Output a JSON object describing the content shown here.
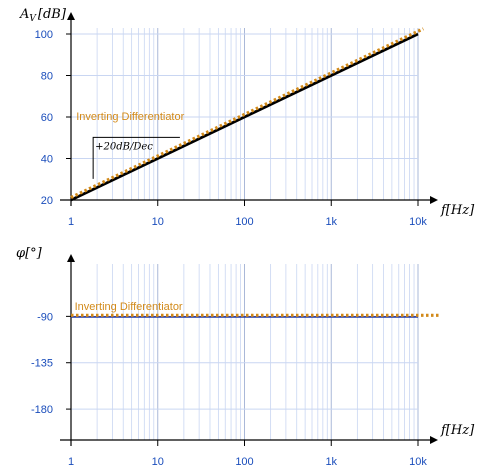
{
  "chart_data": [
    {
      "type": "line",
      "panel": "magnitude",
      "xscale": "log",
      "xlim": [
        1,
        10000
      ],
      "ylim": [
        20,
        100
      ],
      "xticks": [
        1,
        10,
        100,
        1000,
        10000
      ],
      "xtick_labels": [
        "1",
        "10",
        "100",
        "1k",
        "10k"
      ],
      "yticks": [
        20,
        40,
        60,
        80,
        100
      ],
      "ytick_labels": [
        "20",
        "40",
        "60",
        "80",
        "100"
      ],
      "ylabel": "A_V [dB]",
      "ylabel_main": "A",
      "ylabel_sub": "V",
      "ylabel_unit": "[dB]",
      "xlabel": "f[Hz]",
      "grid": true,
      "colors": {
        "axis_labels": "#1a4dbb",
        "grid": "#c9d6f2",
        "approx": "#000000",
        "exact": "#d28a1a"
      },
      "series": [
        {
          "name": "",
          "style": "solid",
          "color": "#000000",
          "x": [
            1,
            10000
          ],
          "y": [
            20,
            100
          ]
        },
        {
          "name": "Inverting Differentiator",
          "style": "dotted",
          "color": "#d28a1a",
          "x": [
            1,
            10000
          ],
          "y": [
            21.2,
            101.3
          ]
        }
      ],
      "annotations": [
        {
          "text": "Inverting Differentiator",
          "x": 1.15,
          "y": 58.5,
          "color": "#d28a1a"
        },
        {
          "text": "+20dB/Dec",
          "slope_triangle": {
            "x0": 1.8,
            "x1": 18,
            "y0": 30.2,
            "y1": 50.2
          }
        }
      ]
    },
    {
      "type": "line",
      "panel": "phase",
      "xscale": "log",
      "xlim": [
        1,
        10000
      ],
      "ylim": [
        -210,
        -45
      ],
      "xticks": [
        1,
        10,
        100,
        1000,
        10000
      ],
      "xtick_labels": [
        "1",
        "10",
        "100",
        "1k",
        "10k"
      ],
      "yticks": [
        -90,
        -135,
        -180
      ],
      "ytick_labels": [
        "-90",
        "-135",
        "-180"
      ],
      "ylabel": "φ[°]",
      "xlabel": "f[Hz]",
      "grid": true,
      "colors": {
        "axis_labels": "#1a4dbb",
        "grid": "#c9d6f2",
        "approx": "#1f3aa8",
        "exact": "#d28a1a",
        "level": "#c0392b"
      },
      "series": [
        {
          "name": "",
          "style": "solid",
          "color": "#1f3aa8",
          "x": [
            1,
            10000
          ],
          "y": [
            -90.5,
            -90.5
          ]
        },
        {
          "name": "Inverting Differentiator",
          "style": "dotted",
          "color": "#d28a1a",
          "x": [
            1,
            10000
          ],
          "y": [
            -89,
            -89
          ]
        }
      ],
      "annotations": [
        {
          "text": "Inverting Differentiator",
          "x": 1.1,
          "y": -84,
          "color": "#d28a1a"
        }
      ]
    }
  ]
}
